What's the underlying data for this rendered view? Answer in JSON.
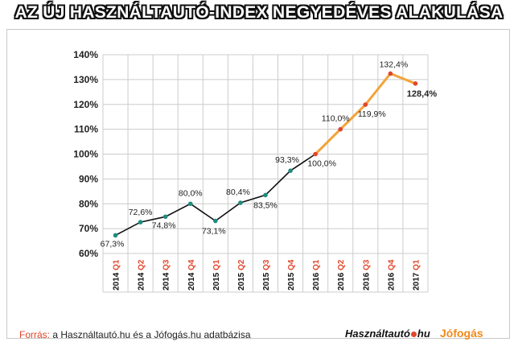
{
  "title": "AZ ÚJ HASZNÁLTAUTÓ-INDEX NEGYEDÉVES ALAKULÁSA",
  "footer": {
    "source_key": "Forrás:",
    "source_text": " a Használtautó.hu és a Jófogás.hu adatbázisa",
    "logo1_a": "Használtautó",
    "logo1_b": "hu",
    "logo2": "Jófogás"
  },
  "colors": {
    "line_before": "#111111",
    "line_after": "#f2a43a",
    "point_before": "#1e8c7e",
    "point_after": "#e2462b",
    "grid": "#cccccc",
    "year_label": "#111111",
    "quarter_label": "#e2462b"
  },
  "chart_data": {
    "type": "line",
    "title": "AZ ÚJ HASZNÁLTAUTÓ-INDEX NEGYEDÉVES ALAKULÁSA",
    "xlabel": "",
    "ylabel": "",
    "ylim": [
      60,
      140
    ],
    "yticks": [
      "60%",
      "70%",
      "80%",
      "90%",
      "100%",
      "110%",
      "120%",
      "130%",
      "140%"
    ],
    "grid": true,
    "categories": [
      {
        "year": "2014",
        "q": "Q1"
      },
      {
        "year": "2014",
        "q": "Q2"
      },
      {
        "year": "2014",
        "q": "Q3"
      },
      {
        "year": "2014",
        "q": "Q4"
      },
      {
        "year": "2015",
        "q": "Q1"
      },
      {
        "year": "2015",
        "q": "Q2"
      },
      {
        "year": "2015",
        "q": "Q3"
      },
      {
        "year": "2015",
        "q": "Q4"
      },
      {
        "year": "2016",
        "q": "Q1"
      },
      {
        "year": "2016",
        "q": "Q2"
      },
      {
        "year": "2016",
        "q": "Q3"
      },
      {
        "year": "2016",
        "q": "Q4"
      },
      {
        "year": "2017",
        "q": "Q1"
      }
    ],
    "values": [
      67.3,
      72.6,
      74.8,
      80.0,
      73.1,
      80.4,
      83.5,
      93.3,
      100.0,
      110.0,
      119.9,
      132.4,
      128.4
    ],
    "labels": [
      "67,3%",
      "72,6%",
      "74,8%",
      "80,0%",
      "73,1%",
      "80,4%",
      "83,5%",
      "93,3%",
      "100,0%",
      "110,0%",
      "119,9%",
      "132,4%",
      "128,4%"
    ],
    "highlight_from_index": 8
  }
}
